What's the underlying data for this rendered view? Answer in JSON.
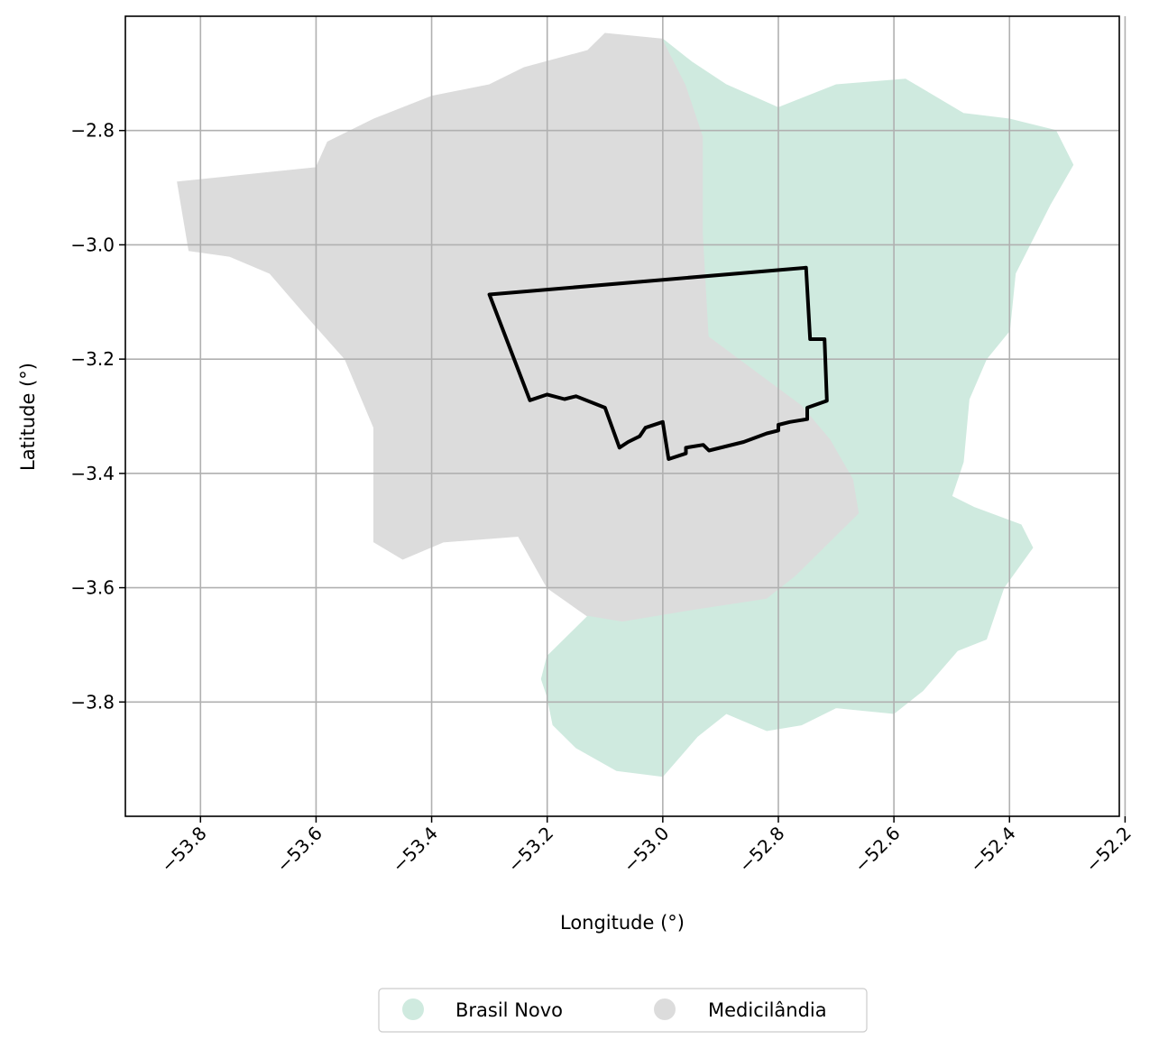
{
  "chart_data": {
    "type": "map",
    "xlabel": "Longitude (°)",
    "ylabel": "Latitude (°)",
    "xlim": [
      -53.93,
      -52.21
    ],
    "ylim": [
      -4.0,
      -2.6
    ],
    "xticks": [
      -53.8,
      -53.6,
      -53.4,
      -53.2,
      -53.0,
      -52.8,
      -52.6,
      -52.4,
      -52.2
    ],
    "xtick_labels": [
      "−53.8",
      "−53.6",
      "−53.4",
      "−53.2",
      "−53.0",
      "−52.8",
      "−52.6",
      "−52.4",
      "−52.2"
    ],
    "yticks": [
      -2.8,
      -3.0,
      -3.2,
      -3.4,
      -3.6,
      -3.8
    ],
    "ytick_labels": [
      "−2.8",
      "−3.0",
      "−3.2",
      "−3.4",
      "−3.6",
      "−3.8"
    ],
    "grid": true,
    "legend": {
      "placement": "bottom-center",
      "entries": [
        {
          "label": "Brasil Novo",
          "color": "#cfeadf"
        },
        {
          "label": "Medicilândia",
          "color": "#dcdcdc"
        }
      ]
    },
    "regions": [
      {
        "name": "Medicilândia",
        "color": "#dcdcdc",
        "polygon": [
          [
            -53.84,
            -2.89
          ],
          [
            -53.6,
            -2.865
          ],
          [
            -53.58,
            -2.82
          ],
          [
            -53.5,
            -2.78
          ],
          [
            -53.4,
            -2.74
          ],
          [
            -53.3,
            -2.72
          ],
          [
            -53.24,
            -2.69
          ],
          [
            -53.13,
            -2.66
          ],
          [
            -53.1,
            -2.63
          ],
          [
            -53.0,
            -2.64
          ],
          [
            -52.96,
            -2.72
          ],
          [
            -52.93,
            -2.81
          ],
          [
            -52.93,
            -2.98
          ],
          [
            -52.92,
            -3.16
          ],
          [
            -52.84,
            -3.22
          ],
          [
            -52.76,
            -3.28
          ],
          [
            -52.71,
            -3.34
          ],
          [
            -52.67,
            -3.41
          ],
          [
            -52.66,
            -3.47
          ],
          [
            -52.71,
            -3.52
          ],
          [
            -52.77,
            -3.58
          ],
          [
            -52.82,
            -3.62
          ],
          [
            -52.95,
            -3.64
          ],
          [
            -53.07,
            -3.66
          ],
          [
            -53.13,
            -3.65
          ],
          [
            -53.2,
            -3.6
          ],
          [
            -53.25,
            -3.51
          ],
          [
            -53.38,
            -3.52
          ],
          [
            -53.45,
            -3.55
          ],
          [
            -53.5,
            -3.52
          ],
          [
            -53.5,
            -3.32
          ],
          [
            -53.55,
            -3.2
          ],
          [
            -53.62,
            -3.12
          ],
          [
            -53.68,
            -3.05
          ],
          [
            -53.75,
            -3.02
          ],
          [
            -53.82,
            -3.01
          ],
          [
            -53.83,
            -2.95
          ]
        ]
      },
      {
        "name": "Brasil Novo",
        "color": "#cfeadf",
        "polygon": [
          [
            -53.0,
            -2.64
          ],
          [
            -52.95,
            -2.68
          ],
          [
            -52.89,
            -2.72
          ],
          [
            -52.8,
            -2.76
          ],
          [
            -52.7,
            -2.72
          ],
          [
            -52.58,
            -2.71
          ],
          [
            -52.48,
            -2.77
          ],
          [
            -52.4,
            -2.78
          ],
          [
            -52.32,
            -2.8
          ],
          [
            -52.29,
            -2.86
          ],
          [
            -52.33,
            -2.93
          ],
          [
            -52.36,
            -2.99
          ],
          [
            -52.39,
            -3.05
          ],
          [
            -52.4,
            -3.15
          ],
          [
            -52.44,
            -3.2
          ],
          [
            -52.47,
            -3.27
          ],
          [
            -52.48,
            -3.38
          ],
          [
            -52.5,
            -3.44
          ],
          [
            -52.46,
            -3.46
          ],
          [
            -52.38,
            -3.49
          ],
          [
            -52.36,
            -3.53
          ],
          [
            -52.41,
            -3.6
          ],
          [
            -52.44,
            -3.69
          ],
          [
            -52.49,
            -3.71
          ],
          [
            -52.55,
            -3.78
          ],
          [
            -52.6,
            -3.82
          ],
          [
            -52.7,
            -3.81
          ],
          [
            -52.76,
            -3.84
          ],
          [
            -52.82,
            -3.85
          ],
          [
            -52.89,
            -3.82
          ],
          [
            -52.94,
            -3.86
          ],
          [
            -53.0,
            -3.93
          ],
          [
            -53.08,
            -3.92
          ],
          [
            -53.15,
            -3.88
          ],
          [
            -53.19,
            -3.84
          ],
          [
            -53.2,
            -3.79
          ],
          [
            -53.21,
            -3.76
          ],
          [
            -53.2,
            -3.72
          ],
          [
            -53.13,
            -3.65
          ],
          [
            -53.07,
            -3.66
          ],
          [
            -52.95,
            -3.64
          ],
          [
            -52.82,
            -3.62
          ],
          [
            -52.77,
            -3.58
          ],
          [
            -52.71,
            -3.52
          ],
          [
            -52.66,
            -3.47
          ],
          [
            -52.67,
            -3.41
          ],
          [
            -52.71,
            -3.34
          ],
          [
            -52.76,
            -3.28
          ],
          [
            -52.84,
            -3.22
          ],
          [
            -52.92,
            -3.16
          ],
          [
            -52.93,
            -2.98
          ],
          [
            -52.93,
            -2.81
          ],
          [
            -52.96,
            -2.72
          ]
        ]
      }
    ],
    "outline": {
      "color": "#000000",
      "polygon": [
        [
          -53.3,
          -3.087
        ],
        [
          -52.752,
          -3.04
        ],
        [
          -52.745,
          -3.165
        ],
        [
          -52.72,
          -3.165
        ],
        [
          -52.716,
          -3.273
        ],
        [
          -52.75,
          -3.285
        ],
        [
          -52.75,
          -3.305
        ],
        [
          -52.78,
          -3.31
        ],
        [
          -52.8,
          -3.315
        ],
        [
          -52.8,
          -3.325
        ],
        [
          -52.82,
          -3.33
        ],
        [
          -52.86,
          -3.345
        ],
        [
          -52.92,
          -3.36
        ],
        [
          -52.93,
          -3.35
        ],
        [
          -52.96,
          -3.355
        ],
        [
          -52.96,
          -3.365
        ],
        [
          -52.99,
          -3.375
        ],
        [
          -53.0,
          -3.31
        ],
        [
          -53.03,
          -3.32
        ],
        [
          -53.04,
          -3.335
        ],
        [
          -53.06,
          -3.345
        ],
        [
          -53.075,
          -3.355
        ],
        [
          -53.1,
          -3.285
        ],
        [
          -53.15,
          -3.265
        ],
        [
          -53.17,
          -3.27
        ],
        [
          -53.2,
          -3.262
        ],
        [
          -53.23,
          -3.272
        ]
      ]
    }
  }
}
